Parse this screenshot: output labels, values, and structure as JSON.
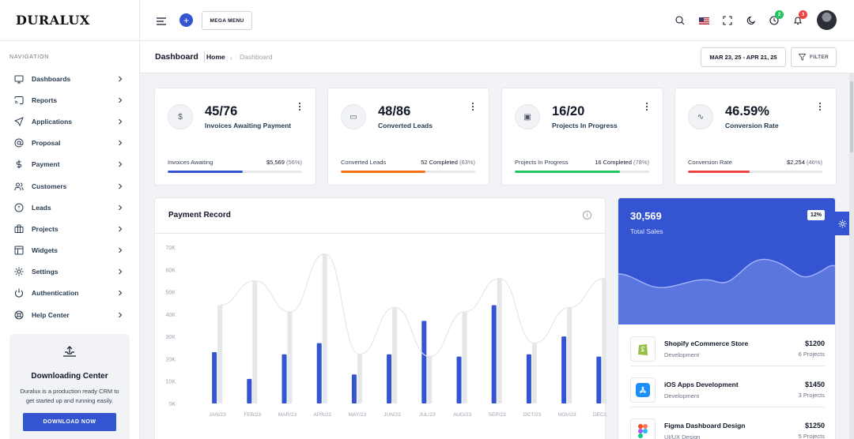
{
  "brand": {
    "logo_text": "DURALUX"
  },
  "sidebar": {
    "caption": "NAVIGATION",
    "items": [
      {
        "label": "Dashboards",
        "icon": "monitor-icon"
      },
      {
        "label": "Reports",
        "icon": "cast-icon"
      },
      {
        "label": "Applications",
        "icon": "send-icon"
      },
      {
        "label": "Proposal",
        "icon": "at-sign-icon"
      },
      {
        "label": "Payment",
        "icon": "dollar-icon"
      },
      {
        "label": "Customers",
        "icon": "users-icon"
      },
      {
        "label": "Leads",
        "icon": "alert-circle-icon"
      },
      {
        "label": "Projects",
        "icon": "briefcase-icon"
      },
      {
        "label": "Widgets",
        "icon": "layout-icon"
      },
      {
        "label": "Settings",
        "icon": "settings-icon"
      },
      {
        "label": "Authentication",
        "icon": "power-icon"
      },
      {
        "label": "Help Center",
        "icon": "life-buoy-icon"
      }
    ],
    "download": {
      "title": "Downloading Center",
      "text": "Duralux is a production ready CRM to get started up and running easily.",
      "button": "DOWNLOAD NOW"
    }
  },
  "header": {
    "mega_menu": "MEGA MENU",
    "plus": "+",
    "timer_badge": "2",
    "bell_badge": "3"
  },
  "page_header": {
    "title": "Dashboard",
    "crumb_home": "Home",
    "crumb_sep": "›",
    "crumb_current": "Dashboard",
    "date_range": "MAR 23, 25 - APR 21, 25",
    "filter": "FILTER"
  },
  "stats": [
    {
      "icon": "dollar-icon",
      "glyph": "$",
      "value": "45/76",
      "label": "Invoices Awaiting Payment",
      "foot_label": "Invoices Awaiting",
      "foot_value": "$5,569",
      "foot_pct": "(56%)",
      "progress": 56,
      "color": "#3454d1"
    },
    {
      "icon": "cast-icon",
      "glyph": "▭",
      "value": "48/86",
      "label": "Converted Leads",
      "foot_label": "Converted Leads",
      "foot_value": "52 Completed",
      "foot_pct": "(63%)",
      "progress": 63,
      "color": "#f97316"
    },
    {
      "icon": "briefcase-icon",
      "glyph": "▣",
      "value": "16/20",
      "label": "Projects In Progress",
      "foot_label": "Projects In Progress",
      "foot_value": "16 Completed",
      "foot_pct": "(78%)",
      "progress": 78,
      "color": "#22c55e"
    },
    {
      "icon": "activity-icon",
      "glyph": "∿",
      "value": "46.59%",
      "label": "Conversion Rate",
      "foot_label": "Conversion Rate",
      "foot_value": "$2,254",
      "foot_pct": "(46%)",
      "progress": 46,
      "color": "#ef4444"
    }
  ],
  "payment_record": {
    "title": "Payment Record",
    "info": "i"
  },
  "chart_data": {
    "type": "bar",
    "categories": [
      "JAN/23",
      "FEB/23",
      "MAR/23",
      "APR/23",
      "MAY/23",
      "JUN/23",
      "JUL/23",
      "AUG/23",
      "SEP/23",
      "OCT/23",
      "NOV/23",
      "DEC/23"
    ],
    "y_ticks": [
      "0K",
      "10K",
      "20K",
      "30K",
      "40K",
      "50K",
      "60K",
      "70K"
    ],
    "ylim": [
      0,
      70000
    ],
    "series": [
      {
        "values": [
          23000,
          11000,
          22000,
          27000,
          13000,
          22000,
          37000,
          21000,
          44000,
          22000,
          30000,
          21000
        ],
        "color": "#3454d1"
      },
      {
        "values": [
          44000,
          55000,
          41000,
          67000,
          22000,
          43000,
          21000,
          41000,
          56000,
          27000,
          43000,
          56000
        ],
        "color": "#e5e7eb"
      }
    ],
    "grid": false
  },
  "total_sales": {
    "value": "30,569",
    "label": "Total Sales",
    "badge": "12%",
    "projects": [
      {
        "icon": "shopify-icon",
        "name": "Shopify eCommerce Store",
        "category": "Development",
        "amount": "$1200",
        "count": "6 Projects"
      },
      {
        "icon": "app-store-icon",
        "name": "iOS Apps Development",
        "category": "Development",
        "amount": "$1450",
        "count": "3 Projects"
      },
      {
        "icon": "figma-icon",
        "name": "Figma Dashboard Design",
        "category": "UI/UX Design",
        "amount": "$1250",
        "count": "5 Projects"
      }
    ]
  }
}
